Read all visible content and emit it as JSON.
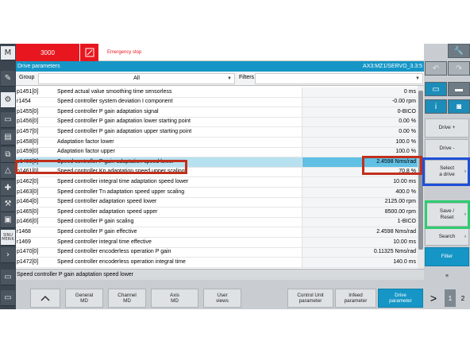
{
  "alarm": {
    "number": "3000",
    "text": "Emergency stop"
  },
  "title": {
    "left": "Drive parameters",
    "right": "AX3:MZ1/SERVO_3.3:5"
  },
  "filter": {
    "group_label": "Group",
    "group_value": "All",
    "filters_label": "Filters"
  },
  "table": {
    "rows": [
      {
        "par": "p1451[0]",
        "desc": "Speed actual value smoothing time sensorless",
        "val": "0 ms"
      },
      {
        "par": "r1454",
        "desc": "Speed controller system deviation I component",
        "val": "-0.00 rpm"
      },
      {
        "par": "p1455[0]",
        "desc": "Speed controller P gain adaptation signal",
        "val": "0-BICO"
      },
      {
        "par": "p1456[0]",
        "desc": "Speed controller P gain adaptation lower starting point",
        "val": "0.00 %"
      },
      {
        "par": "p1457[0]",
        "desc": "Speed controller P gain adaptation upper starting point",
        "val": "0.00 %"
      },
      {
        "par": "p1458[0]",
        "desc": "Adaptation factor lower",
        "val": "100.0 %"
      },
      {
        "par": "p1459[0]",
        "desc": "Adaptation factor upper",
        "val": "100.0 %"
      },
      {
        "par": "p1460[0]",
        "desc": "Speed controller P gain adaptation speed lower",
        "val": "2.4598 Nms/rad"
      },
      {
        "par": "p1461[0]",
        "desc": "Speed controller Kp adaptation speed upper scaling",
        "val": "70.8 %"
      },
      {
        "par": "p1462[0]",
        "desc": "Speed controller integral time adaptation speed lower",
        "val": "10.00 ms"
      },
      {
        "par": "p1463[0]",
        "desc": "Speed controller Tn adaptation speed upper scaling",
        "val": "400.0 %"
      },
      {
        "par": "p1464[0]",
        "desc": "Speed controller adaptation speed lower",
        "val": "2125.00 rpm"
      },
      {
        "par": "p1465[0]",
        "desc": "Speed controller adaptation speed upper",
        "val": "8500.00 rpm"
      },
      {
        "par": "p1466[0]",
        "desc": "Speed controller P gain scaling",
        "val": "1-BICO"
      },
      {
        "par": "r1468",
        "desc": "Speed controller P gain effective",
        "val": "2.4598 Nms/rad"
      },
      {
        "par": "r1469",
        "desc": "Speed controller integral time effective",
        "val": "10.00 ms"
      },
      {
        "par": "p1470[0]",
        "desc": "Speed controller encoderless operation P gain",
        "val": "0.11325 Nms/rad"
      },
      {
        "par": "p1472[0]",
        "desc": "Speed controller encoderless operation integral time",
        "val": "140.0 ms"
      }
    ]
  },
  "status": {
    "text": "Speed controller P gain adaptation speed lower"
  },
  "hsoftkeys": [
    {
      "label": "General\nMD"
    },
    {
      "label": "Channel\nMD"
    },
    {
      "label": "Axis\nMD"
    },
    {
      "label": "User\nviews"
    },
    {
      "label": "Control Unit\nparameter"
    },
    {
      "label": "Infeed\nparameter"
    },
    {
      "label": "Drive\nparameter"
    }
  ],
  "vsoftkeys": {
    "drive_plus": "Drive +",
    "drive_minus": "Drive -",
    "select_drive": "Select\na drive",
    "save_reset": "Save /\nReset",
    "search": "Search",
    "filter": "Filter"
  },
  "page_nav": {
    "next": ">",
    "page1": "1",
    "page2": "2"
  },
  "left_icons": {
    "sinumerik": "SINU\nMERIK"
  },
  "colors": {
    "accent": "#1596c6",
    "alarm": "#e8171f",
    "highlight_red": "#c0301c",
    "highlight_blue": "#1f4fd8",
    "highlight_green": "#2ecc71"
  }
}
